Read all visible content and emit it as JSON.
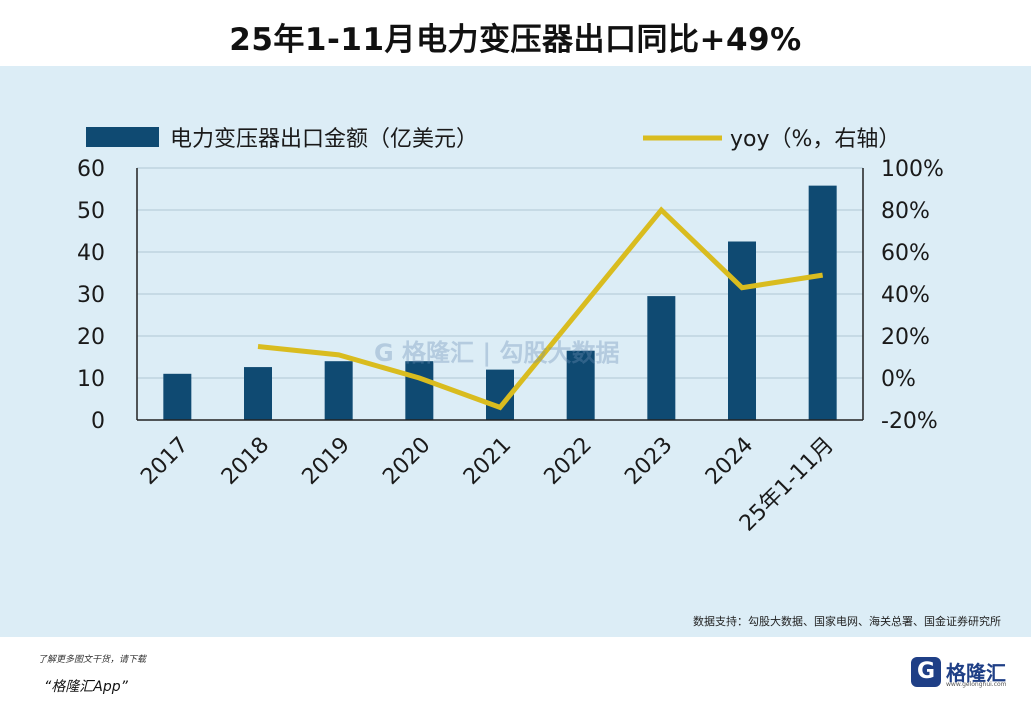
{
  "title": "25年1-11月电力变压器出口同比+49%",
  "source_text": "数据支持：勾股大数据、国家电网、海关总署、国金证券研究所",
  "promo": {
    "line1": "了解更多图文干货，请下载",
    "line2": "“格隆汇App”"
  },
  "logo": {
    "mark": "G",
    "name": "格隆汇",
    "url": "www.gelonghui.com"
  },
  "watermark": "G 格隆汇 | 勾股大数据",
  "colors": {
    "bar": "#0f4a72",
    "line": "#d9bc1f",
    "panel_bg": "#dcedf6",
    "grid": "#b9cfdb"
  },
  "chart_data": {
    "type": "bar",
    "categories": [
      "2017",
      "2018",
      "2019",
      "2020",
      "2021",
      "2022",
      "2023",
      "2024",
      "25年1-11月"
    ],
    "series": [
      {
        "name": "电力变压器出口金额（亿美元）",
        "type": "bar",
        "axis": "left",
        "values": [
          11,
          12.6,
          14,
          14,
          12,
          16.5,
          29.5,
          42.5,
          55.8
        ]
      },
      {
        "name": "yoy（%，右轴）",
        "type": "line",
        "axis": "right",
        "values": [
          null,
          15,
          11,
          0,
          -14,
          33,
          80,
          43,
          49
        ]
      }
    ],
    "y_left": {
      "min": 0,
      "max": 60,
      "ticks": [
        "0",
        "10",
        "20",
        "30",
        "40",
        "50",
        "60"
      ]
    },
    "y_right": {
      "min": -20,
      "max": 100,
      "ticks": [
        "-20%",
        "0%",
        "20%",
        "40%",
        "60%",
        "80%",
        "100%"
      ]
    },
    "grid": true,
    "legend_position": "top"
  }
}
